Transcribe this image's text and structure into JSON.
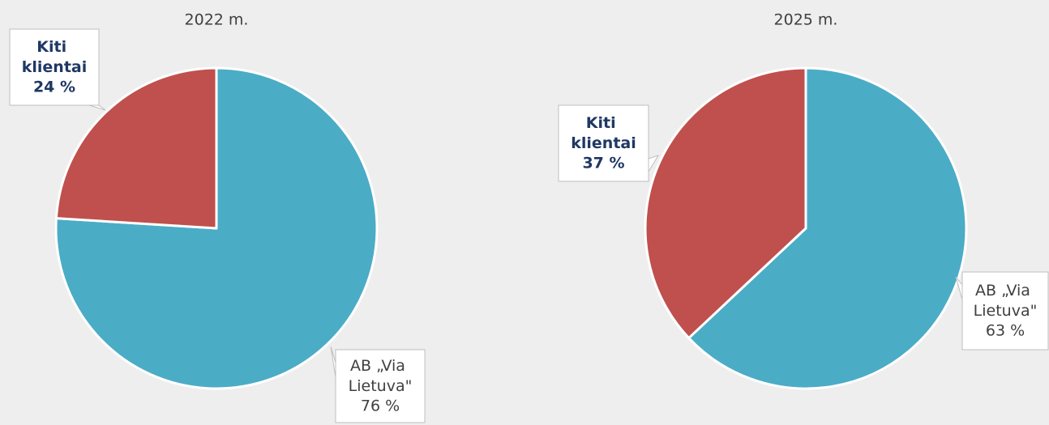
{
  "chart_data": [
    {
      "type": "pie",
      "title": "2022 m.",
      "categories": [
        "AB „Via Lietuva\"",
        "Kiti klientai"
      ],
      "values": [
        76,
        24
      ],
      "value_labels": [
        "76 %",
        "24 %"
      ],
      "colors": [
        "#4bacc6",
        "#c0504d"
      ]
    },
    {
      "type": "pie",
      "title": "2025 m.",
      "categories": [
        "AB „Via Lietuva\"",
        "Kiti klientai"
      ],
      "values": [
        63,
        37
      ],
      "value_labels": [
        "63 %",
        "37 %"
      ],
      "colors": [
        "#4bacc6",
        "#c0504d"
      ]
    }
  ]
}
